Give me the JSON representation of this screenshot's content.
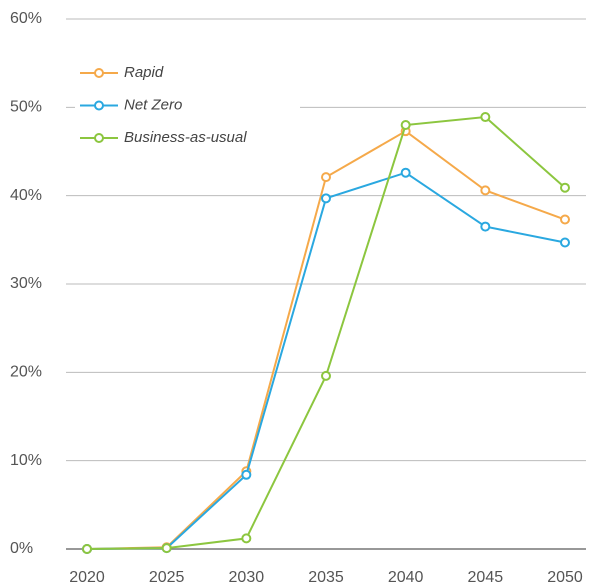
{
  "chart_data": {
    "type": "line",
    "x": [
      2020,
      2025,
      2030,
      2035,
      2040,
      2045,
      2050
    ],
    "series": [
      {
        "name": "Rapid",
        "color": "#f5a94a",
        "values": [
          0,
          0.2,
          8.8,
          42.1,
          47.3,
          40.6,
          37.3
        ]
      },
      {
        "name": "Net Zero",
        "color": "#2aa8e0",
        "values": [
          0,
          0.1,
          8.4,
          39.7,
          42.6,
          36.5,
          34.7
        ]
      },
      {
        "name": "Business-as-usual",
        "color": "#8cc63f",
        "values": [
          0,
          0.1,
          1.2,
          19.6,
          48.0,
          48.9,
          40.9
        ]
      }
    ],
    "xlim": [
      2020,
      2050
    ],
    "xticks": [
      2020,
      2025,
      2030,
      2035,
      2040,
      2045,
      2050
    ],
    "ylim": [
      0,
      60
    ],
    "yticks": [
      {
        "value": 0,
        "label": "0%"
      },
      {
        "value": 10,
        "label": "10%"
      },
      {
        "value": 20,
        "label": "20%"
      },
      {
        "value": 30,
        "label": "30%"
      },
      {
        "value": 40,
        "label": "40%"
      },
      {
        "value": 50,
        "label": "50%"
      },
      {
        "value": 60,
        "label": "60%"
      }
    ],
    "grid": true,
    "legend": "top-left"
  }
}
